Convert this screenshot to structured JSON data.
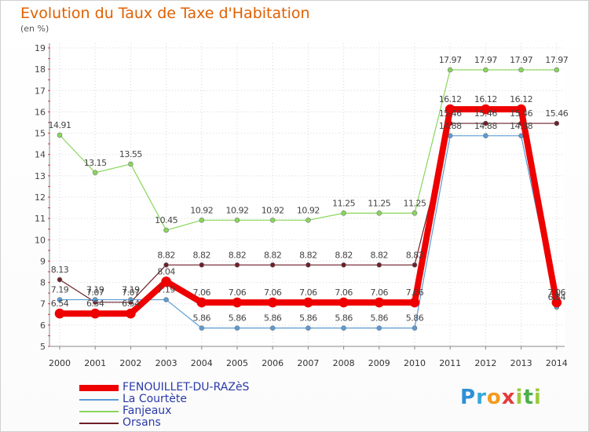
{
  "header": {
    "title": "Evolution du Taux de Taxe d'Habitation",
    "unit": "(en %)"
  },
  "brand": {
    "letters": [
      "P",
      "r",
      "o",
      "x",
      "i",
      "t",
      "i"
    ],
    "colors": [
      "#2f8fd6",
      "#35a8dc",
      "#f39a1e",
      "#e63a3a",
      "#9acb3c",
      "#4cae4c",
      "#9acb3c"
    ]
  },
  "chart_data": {
    "type": "line",
    "x": [
      "2000",
      "2001",
      "2002",
      "2003",
      "2004",
      "2005",
      "2006",
      "2007",
      "2008",
      "2009",
      "2010",
      "2011",
      "2012",
      "2013",
      "2014"
    ],
    "ylim": [
      5,
      19
    ],
    "yticks": [
      5,
      6,
      7,
      8,
      9,
      10,
      11,
      12,
      13,
      14,
      15,
      16,
      17,
      18,
      19
    ],
    "grid": true,
    "legend_position": "bottom-left",
    "series": [
      {
        "name": "FENOUILLET-DU-RAZèS",
        "color": "#ee0000",
        "width": 8,
        "values": [
          6.54,
          6.54,
          6.54,
          8.04,
          7.06,
          7.06,
          7.06,
          7.06,
          7.06,
          7.06,
          7.06,
          16.12,
          16.12,
          16.12,
          7.06
        ],
        "labels": [
          "6.54",
          "6.54",
          "6.54",
          "8.04",
          "7.06",
          "7.06",
          "7.06",
          "7.06",
          "7.06",
          "7.06",
          "7.06",
          "16.12",
          "16.12",
          "16.12",
          "7.06"
        ]
      },
      {
        "name": "La Courtète",
        "color": "#5b9bd5",
        "width": 1.2,
        "values": [
          7.19,
          7.19,
          7.19,
          7.19,
          5.86,
          5.86,
          5.86,
          5.86,
          5.86,
          5.86,
          5.86,
          14.88,
          14.88,
          14.88,
          6.84
        ],
        "labels": [
          "7.19",
          "7.19",
          "7.19",
          "7.19",
          "5.86",
          "5.86",
          "5.86",
          "5.86",
          "5.86",
          "5.86",
          "5.86",
          "14.88",
          "14.88",
          "14.88",
          "6.84"
        ]
      },
      {
        "name": "Fanjeaux",
        "color": "#88d65a",
        "width": 1.2,
        "values": [
          14.91,
          13.15,
          13.55,
          10.45,
          10.92,
          10.92,
          10.92,
          10.92,
          11.25,
          11.25,
          11.25,
          17.97,
          17.97,
          17.97,
          17.97
        ],
        "labels": [
          "14.91",
          "13.15",
          "13.55",
          "10.45",
          "10.92",
          "10.92",
          "10.92",
          "10.92",
          "11.25",
          "11.25",
          "11.25",
          "17.97",
          "17.97",
          "17.97",
          "17.97"
        ]
      },
      {
        "name": "Orsans",
        "color": "#6e1f28",
        "width": 1.2,
        "values": [
          8.13,
          7.07,
          7.07,
          8.82,
          8.82,
          8.82,
          8.82,
          8.82,
          8.82,
          8.82,
          8.82,
          15.46,
          15.46,
          15.46,
          15.46
        ],
        "labels": [
          "8.13",
          "7.07",
          "7.07",
          "8.82",
          "8.82",
          "8.82",
          "8.82",
          "8.82",
          "8.82",
          "8.82",
          "8.82",
          "15.46",
          "15.46",
          "15.46",
          "15.46"
        ]
      }
    ]
  }
}
